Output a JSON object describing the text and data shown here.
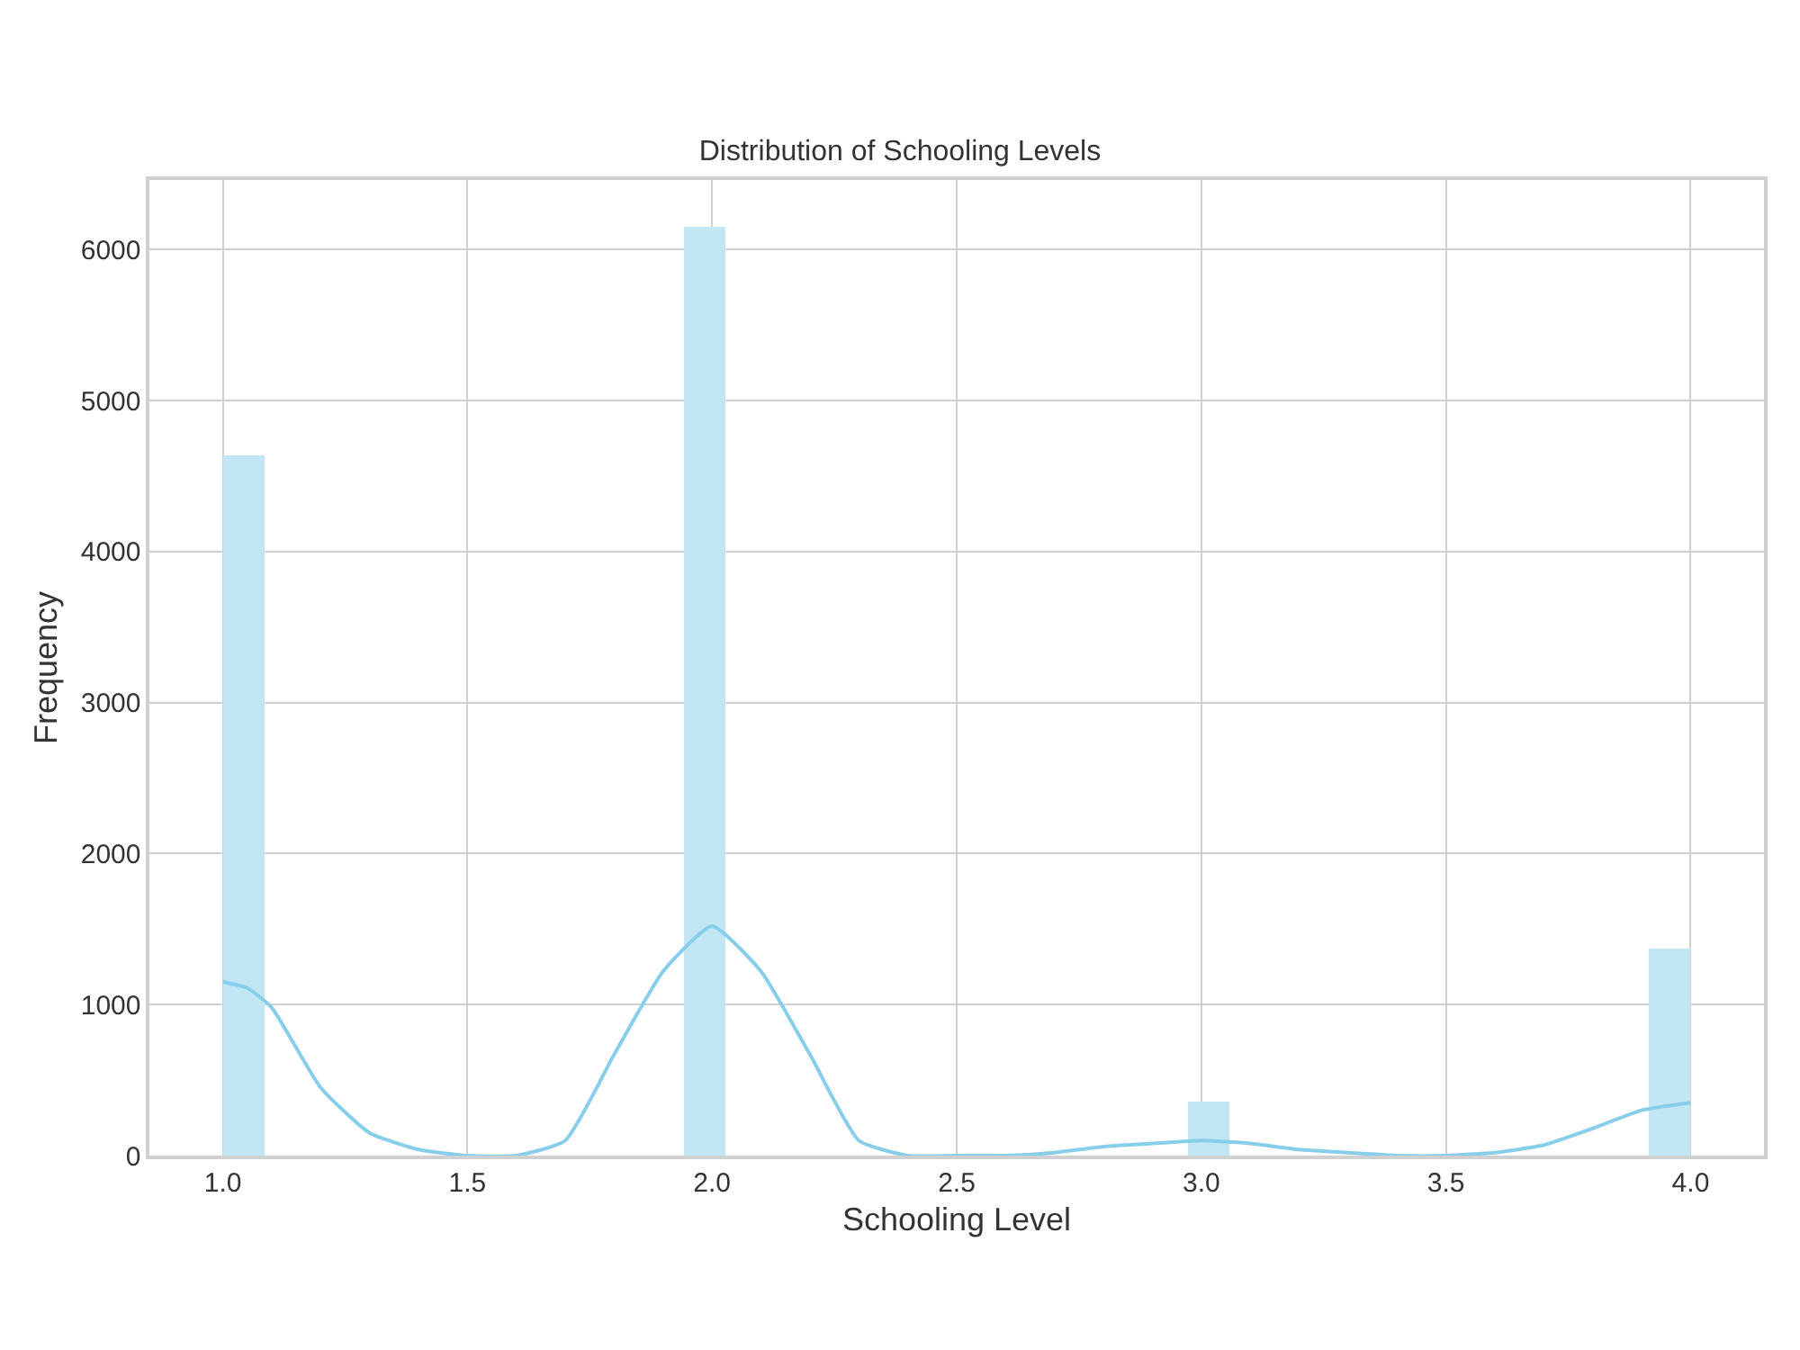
{
  "chart_data": {
    "type": "histogram",
    "title": "Distribution of Schooling Levels",
    "xlabel": "Schooling Level",
    "ylabel": "Frequency",
    "bins": [
      1.0,
      1.0857,
      1.1714,
      1.2571,
      1.3429,
      1.4286,
      1.5143,
      1.6,
      1.6857,
      1.7714,
      1.8571,
      1.9429,
      2.0286,
      2.1143,
      2.2,
      2.2857,
      2.3714,
      2.4571,
      2.5429,
      2.6286,
      2.7143,
      2.8,
      2.8857,
      2.9714,
      3.0571,
      3.1429,
      3.2286,
      3.3143,
      3.4,
      3.4857,
      3.5714,
      3.6571,
      3.7429,
      3.8286,
      3.9143,
      4.0
    ],
    "series": [
      {
        "color": "#c3e6f4",
        "values": [
          4640,
          0,
          0,
          0,
          0,
          0,
          0,
          0,
          0,
          0,
          0,
          6150,
          0,
          0,
          0,
          0,
          0,
          0,
          0,
          0,
          0,
          0,
          0,
          360,
          0,
          0,
          0,
          0,
          0,
          0,
          0,
          0,
          0,
          0,
          1370
        ]
      },
      {
        "type": "line",
        "color": "#87ceeb",
        "x": [
          1.0,
          1.05,
          1.1,
          1.2,
          1.3,
          1.4,
          1.5,
          1.6,
          1.7,
          1.8,
          1.9,
          2.0,
          2.1,
          2.2,
          2.3,
          2.4,
          2.5,
          2.6,
          2.7,
          2.8,
          2.9,
          3.0,
          3.1,
          3.2,
          3.3,
          3.4,
          3.5,
          3.6,
          3.7,
          3.8,
          3.9,
          4.0
        ],
        "values": [
          1150,
          1110,
          980,
          450,
          150,
          40,
          0,
          0,
          100,
          670,
          1220,
          1520,
          1220,
          670,
          100,
          0,
          0,
          0,
          20,
          60,
          80,
          100,
          80,
          40,
          20,
          0,
          0,
          20,
          70,
          180,
          300,
          350
        ]
      }
    ],
    "xlim": [
      0.85,
      4.15
    ],
    "xticks": [
      {
        "value": 1.0,
        "label": "1.0"
      },
      1.5,
      {
        "value": 2.0,
        "label": "2.0"
      },
      2.5,
      {
        "value": 3.0,
        "label": "3.0"
      },
      3.5,
      {
        "value": 4.0,
        "label": "4.0"
      }
    ],
    "ylim": [
      0,
      6460
    ],
    "yticks": [
      0,
      1000,
      2000,
      3000,
      4000,
      5000,
      6000
    ],
    "grid": true
  }
}
